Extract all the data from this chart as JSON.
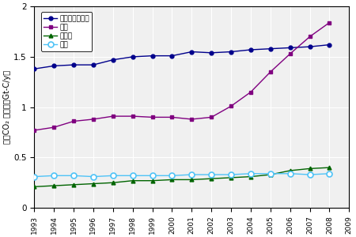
{
  "years": [
    1993,
    1994,
    1995,
    1996,
    1997,
    1998,
    1999,
    2000,
    2001,
    2002,
    2003,
    2004,
    2005,
    2006,
    2007,
    2008
  ],
  "usa": [
    1.38,
    1.41,
    1.42,
    1.42,
    1.47,
    1.5,
    1.51,
    1.51,
    1.55,
    1.54,
    1.55,
    1.57,
    1.58,
    1.59,
    1.6,
    1.62
  ],
  "china": [
    0.77,
    0.8,
    0.86,
    0.88,
    0.91,
    0.91,
    0.9,
    0.9,
    0.88,
    0.9,
    1.01,
    1.15,
    1.35,
    1.53,
    1.7,
    1.84
  ],
  "india": [
    0.21,
    0.22,
    0.23,
    0.24,
    0.25,
    0.27,
    0.27,
    0.28,
    0.28,
    0.29,
    0.3,
    0.31,
    0.33,
    0.37,
    0.39,
    0.4
  ],
  "japan": [
    0.31,
    0.32,
    0.32,
    0.31,
    0.32,
    0.32,
    0.32,
    0.32,
    0.33,
    0.33,
    0.33,
    0.34,
    0.34,
    0.34,
    0.33,
    0.34
  ],
  "usa_color": "#00008B",
  "china_color": "#800080",
  "india_color": "#006400",
  "japan_color": "#4FC3F7",
  "usa_label": "アメリカ合衆国",
  "china_label": "中国",
  "india_label": "インド",
  "japan_label": "日本",
  "ylabel": "年間CO₂ 排出量（Gt-C/y）",
  "ylim": [
    0,
    2.0
  ],
  "xlim": [
    1993,
    2009
  ],
  "yticks": [
    0,
    0.5,
    1.0,
    1.5,
    2.0
  ],
  "ytick_labels": [
    "0",
    "0.5",
    "1",
    "1.5",
    "2"
  ],
  "xticks": [
    1993,
    1994,
    1995,
    1996,
    1997,
    1998,
    1999,
    2000,
    2001,
    2002,
    2003,
    2004,
    2005,
    2006,
    2007,
    2008,
    2009
  ],
  "bg_color": "#ffffff",
  "plot_bg_color": "#f0f0f0",
  "grid_color": "#ffffff"
}
